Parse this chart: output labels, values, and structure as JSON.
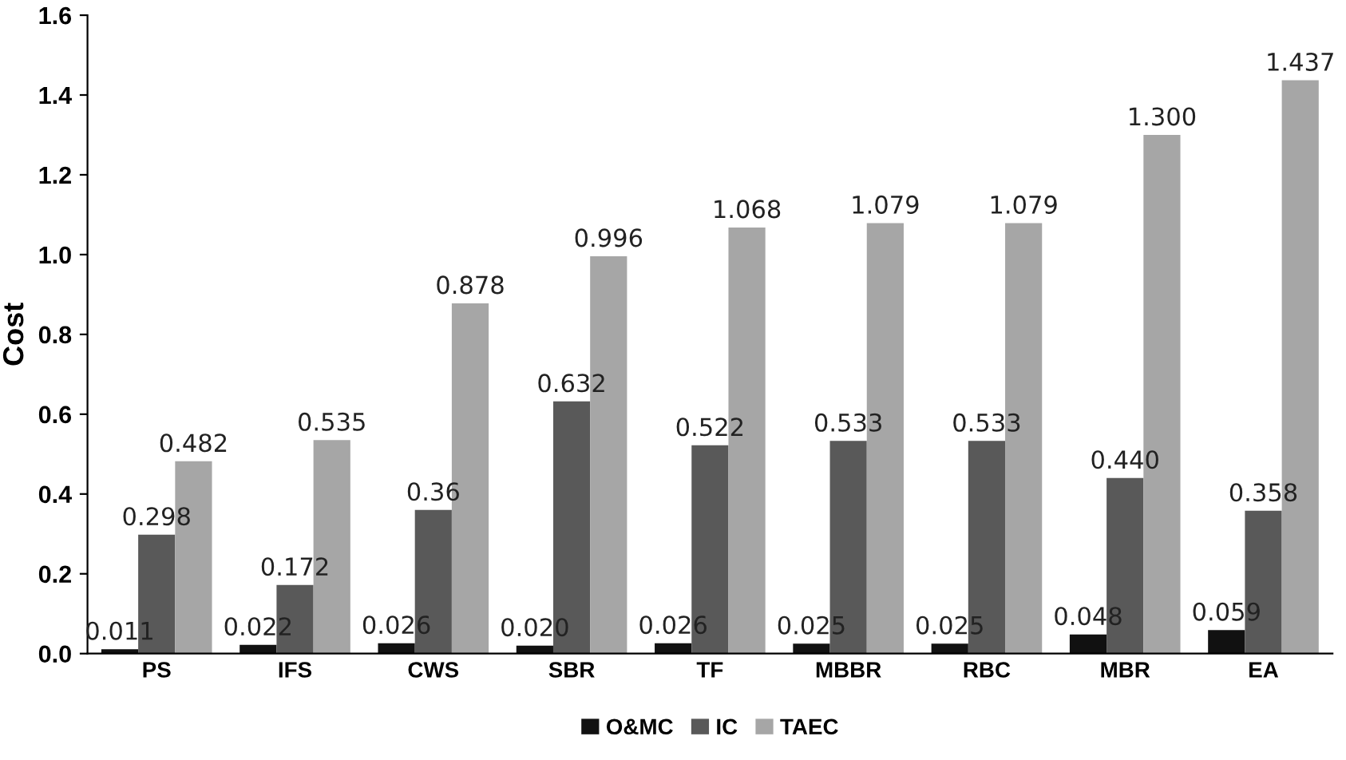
{
  "chart_data": {
    "type": "bar",
    "ylabel": "Cost",
    "categories": [
      "PS",
      "IFS",
      "CWS",
      "SBR",
      "TF",
      "MBBR",
      "RBC",
      "MBR",
      "EA"
    ],
    "series": [
      {
        "name": "O&MC",
        "color": "#111111",
        "values": [
          0.011,
          0.022,
          0.026,
          0.02,
          0.026,
          0.025,
          0.025,
          0.048,
          0.059
        ],
        "value_labels": [
          "0.011",
          "0.022",
          "0.026",
          "0.020",
          "0.026",
          "0.025",
          "0.025",
          "0.048",
          "0.059"
        ]
      },
      {
        "name": "IC",
        "color": "#595959",
        "values": [
          0.298,
          0.172,
          0.36,
          0.632,
          0.522,
          0.533,
          0.533,
          0.44,
          0.358
        ],
        "value_labels": [
          "0.298",
          "0.172",
          "0.36",
          "0.632",
          "0.522",
          "0.533",
          "0.533",
          "0.440",
          "0.358"
        ]
      },
      {
        "name": "TAEC",
        "color": "#a6a6a6",
        "values": [
          0.482,
          0.535,
          0.878,
          0.996,
          1.068,
          1.079,
          1.079,
          1.3,
          1.437
        ],
        "value_labels": [
          "0.482",
          "0.535",
          "0.878",
          "0.996",
          "1.068",
          "1.079",
          "1.079",
          "1.300",
          "1.437"
        ]
      }
    ],
    "ylim": [
      0,
      1.6
    ],
    "yticks": [
      {
        "value": 0,
        "label": "0.0"
      },
      {
        "value": 0.2,
        "label": "0.2"
      },
      {
        "value": 0.4,
        "label": "0.4"
      },
      {
        "value": 0.6,
        "label": "0.6"
      },
      {
        "value": 0.8,
        "label": "0.8"
      },
      {
        "value": 1.0,
        "label": "1.0"
      },
      {
        "value": 1.2,
        "label": "1.2"
      },
      {
        "value": 1.4,
        "label": "1.4"
      },
      {
        "value": 1.6,
        "label": "1.6"
      }
    ],
    "grid": false,
    "legend": "bottom"
  }
}
